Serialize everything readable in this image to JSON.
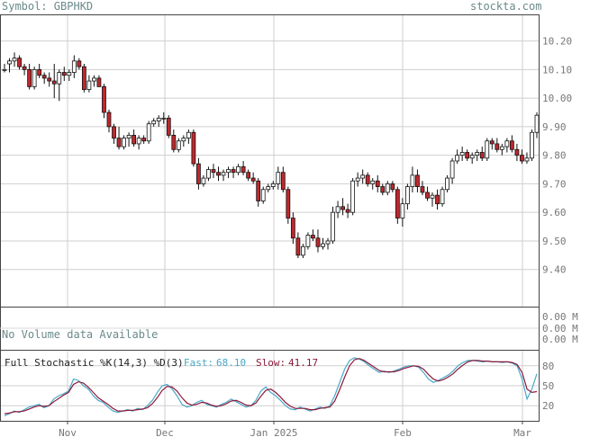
{
  "header": {
    "symbol_label": "Symbol: GBPHKD",
    "brand": "stockta.com"
  },
  "colors": {
    "up_candle": "#ffffff",
    "down_candle": "#c0282d",
    "grid": "#cfcfcf",
    "fast_line": "#4aa8c8",
    "slow_line": "#8b1a3a",
    "text": "#6a8a8a"
  },
  "chart_data": [
    {
      "type": "candlestick",
      "title": "Symbol: GBPHKD",
      "x_labels": [
        "Nov",
        "Dec",
        "Jan 2025",
        "Feb",
        "Mar"
      ],
      "y_ticks": [
        "10.20",
        "10.10",
        "10.00",
        "9.90",
        "9.80",
        "9.70",
        "9.60",
        "9.50",
        "9.40"
      ],
      "ylim": [
        9.27,
        10.29
      ],
      "grid": true,
      "ohlc": [
        [
          10.1,
          10.12,
          10.09,
          10.1
        ],
        [
          10.12,
          10.14,
          10.09,
          10.13
        ],
        [
          10.13,
          10.16,
          10.11,
          10.14
        ],
        [
          10.14,
          10.15,
          10.1,
          10.11
        ],
        [
          10.11,
          10.12,
          10.08,
          10.1
        ],
        [
          10.1,
          10.12,
          10.03,
          10.04
        ],
        [
          10.04,
          10.11,
          10.03,
          10.1
        ],
        [
          10.1,
          10.12,
          10.07,
          10.08
        ],
        [
          10.08,
          10.09,
          10.05,
          10.07
        ],
        [
          10.07,
          10.09,
          10.04,
          10.06
        ],
        [
          10.06,
          10.12,
          10.0,
          10.05
        ],
        [
          10.05,
          10.1,
          9.99,
          10.09
        ],
        [
          10.09,
          10.11,
          10.06,
          10.08
        ],
        [
          10.08,
          10.1,
          10.06,
          10.09
        ],
        [
          10.09,
          10.15,
          10.07,
          10.13
        ],
        [
          10.13,
          10.14,
          10.1,
          10.11
        ],
        [
          10.11,
          10.12,
          10.02,
          10.03
        ],
        [
          10.03,
          10.08,
          10.02,
          10.06
        ],
        [
          10.06,
          10.08,
          10.04,
          10.07
        ],
        [
          10.07,
          10.08,
          10.04,
          10.04
        ],
        [
          10.04,
          10.05,
          9.93,
          9.95
        ],
        [
          9.95,
          9.96,
          9.88,
          9.9
        ],
        [
          9.9,
          9.91,
          9.84,
          9.86
        ],
        [
          9.86,
          9.9,
          9.82,
          9.83
        ],
        [
          9.83,
          9.87,
          9.82,
          9.86
        ],
        [
          9.86,
          9.88,
          9.83,
          9.87
        ],
        [
          9.87,
          9.89,
          9.83,
          9.84
        ],
        [
          9.84,
          9.87,
          9.82,
          9.86
        ],
        [
          9.86,
          9.87,
          9.84,
          9.85
        ],
        [
          9.85,
          9.92,
          9.84,
          9.91
        ],
        [
          9.91,
          9.93,
          9.9,
          9.92
        ],
        [
          9.92,
          9.94,
          9.9,
          9.93
        ],
        [
          9.93,
          9.95,
          9.91,
          9.93
        ],
        [
          9.93,
          9.94,
          9.86,
          9.87
        ],
        [
          9.87,
          9.89,
          9.81,
          9.82
        ],
        [
          9.82,
          9.86,
          9.81,
          9.85
        ],
        [
          9.85,
          9.87,
          9.83,
          9.86
        ],
        [
          9.86,
          9.89,
          9.84,
          9.88
        ],
        [
          9.88,
          9.89,
          9.76,
          9.77
        ],
        [
          9.77,
          9.79,
          9.68,
          9.7
        ],
        [
          9.7,
          9.73,
          9.69,
          9.72
        ],
        [
          9.72,
          9.76,
          9.71,
          9.75
        ],
        [
          9.75,
          9.77,
          9.72,
          9.74
        ],
        [
          9.74,
          9.76,
          9.71,
          9.73
        ],
        [
          9.73,
          9.75,
          9.71,
          9.74
        ],
        [
          9.74,
          9.76,
          9.72,
          9.75
        ],
        [
          9.75,
          9.76,
          9.72,
          9.74
        ],
        [
          9.74,
          9.77,
          9.73,
          9.76
        ],
        [
          9.76,
          9.78,
          9.73,
          9.74
        ],
        [
          9.74,
          9.75,
          9.71,
          9.72
        ],
        [
          9.72,
          9.74,
          9.7,
          9.71
        ],
        [
          9.71,
          9.72,
          9.62,
          9.64
        ],
        [
          9.64,
          9.69,
          9.63,
          9.68
        ],
        [
          9.68,
          9.7,
          9.67,
          9.69
        ],
        [
          9.69,
          9.71,
          9.68,
          9.7
        ],
        [
          9.7,
          9.76,
          9.68,
          9.74
        ],
        [
          9.74,
          9.76,
          9.67,
          9.68
        ],
        [
          9.68,
          9.69,
          9.56,
          9.58
        ],
        [
          9.58,
          9.6,
          9.49,
          9.51
        ],
        [
          9.51,
          9.53,
          9.44,
          9.45
        ],
        [
          9.45,
          9.49,
          9.44,
          9.48
        ],
        [
          9.48,
          9.53,
          9.47,
          9.52
        ],
        [
          9.52,
          9.54,
          9.5,
          9.51
        ],
        [
          9.51,
          9.54,
          9.46,
          9.48
        ],
        [
          9.48,
          9.51,
          9.47,
          9.49
        ],
        [
          9.49,
          9.51,
          9.47,
          9.5
        ],
        [
          9.5,
          9.62,
          9.49,
          9.6
        ],
        [
          9.6,
          9.64,
          9.58,
          9.62
        ],
        [
          9.62,
          9.65,
          9.59,
          9.61
        ],
        [
          9.61,
          9.63,
          9.58,
          9.6
        ],
        [
          9.6,
          9.72,
          9.59,
          9.71
        ],
        [
          9.71,
          9.74,
          9.69,
          9.72
        ],
        [
          9.72,
          9.75,
          9.7,
          9.73
        ],
        [
          9.73,
          9.74,
          9.69,
          9.7
        ],
        [
          9.7,
          9.72,
          9.68,
          9.71
        ],
        [
          9.71,
          9.73,
          9.67,
          9.69
        ],
        [
          9.69,
          9.7,
          9.66,
          9.67
        ],
        [
          9.67,
          9.71,
          9.66,
          9.7
        ],
        [
          9.7,
          9.71,
          9.67,
          9.68
        ],
        [
          9.68,
          9.69,
          9.56,
          9.58
        ],
        [
          9.58,
          9.65,
          9.55,
          9.63
        ],
        [
          9.63,
          9.7,
          9.61,
          9.69
        ],
        [
          9.69,
          9.76,
          9.67,
          9.73
        ],
        [
          9.73,
          9.75,
          9.67,
          9.69
        ],
        [
          9.69,
          9.71,
          9.66,
          9.67
        ],
        [
          9.67,
          9.69,
          9.64,
          9.65
        ],
        [
          9.65,
          9.67,
          9.62,
          9.66
        ],
        [
          9.66,
          9.68,
          9.61,
          9.63
        ],
        [
          9.63,
          9.69,
          9.62,
          9.68
        ],
        [
          9.68,
          9.73,
          9.67,
          9.72
        ],
        [
          9.72,
          9.79,
          9.7,
          9.78
        ],
        [
          9.78,
          9.82,
          9.77,
          9.8
        ],
        [
          9.8,
          9.83,
          9.78,
          9.81
        ],
        [
          9.81,
          9.82,
          9.78,
          9.79
        ],
        [
          9.79,
          9.81,
          9.77,
          9.8
        ],
        [
          9.8,
          9.82,
          9.78,
          9.81
        ],
        [
          9.81,
          9.83,
          9.78,
          9.79
        ],
        [
          9.79,
          9.86,
          9.78,
          9.85
        ],
        [
          9.85,
          9.86,
          9.82,
          9.84
        ],
        [
          9.84,
          9.86,
          9.81,
          9.82
        ],
        [
          9.82,
          9.84,
          9.8,
          9.83
        ],
        [
          9.83,
          9.86,
          9.81,
          9.85
        ],
        [
          9.85,
          9.87,
          9.81,
          9.82
        ],
        [
          9.82,
          9.84,
          9.78,
          9.8
        ],
        [
          9.8,
          9.82,
          9.77,
          9.78
        ],
        [
          9.78,
          9.81,
          9.77,
          9.79
        ],
        [
          9.79,
          9.89,
          9.78,
          9.88
        ],
        [
          9.88,
          9.95,
          9.86,
          9.94
        ]
      ]
    },
    {
      "type": "bar",
      "title": "No Volume data Available",
      "y_ticks": [
        "0.00 M",
        "0.00 M",
        "0.00 M"
      ],
      "values": []
    },
    {
      "type": "line",
      "title": "Full Stochastic %K(14,3) %D(3)",
      "legend": [
        {
          "label": "Fast:",
          "value": "68.10"
        },
        {
          "label": "Slow:",
          "value": "41.17"
        }
      ],
      "y_ticks": [
        "80",
        "50",
        "20"
      ],
      "ylim": [
        0,
        100
      ],
      "series": [
        {
          "name": "Fast",
          "values": [
            5,
            8,
            12,
            10,
            14,
            18,
            20,
            22,
            17,
            20,
            30,
            35,
            38,
            42,
            60,
            58,
            50,
            45,
            35,
            28,
            25,
            18,
            12,
            10,
            12,
            14,
            12,
            16,
            14,
            20,
            28,
            40,
            50,
            52,
            45,
            35,
            22,
            18,
            20,
            25,
            28,
            22,
            20,
            18,
            22,
            25,
            30,
            26,
            22,
            18,
            20,
            28,
            42,
            48,
            40,
            35,
            28,
            20,
            15,
            14,
            18,
            15,
            12,
            15,
            18,
            16,
            20,
            35,
            55,
            75,
            88,
            92,
            90,
            86,
            80,
            75,
            70,
            72,
            70,
            72,
            75,
            78,
            80,
            80,
            78,
            70,
            60,
            55,
            58,
            62,
            66,
            72,
            80,
            85,
            88,
            88,
            87,
            86,
            87,
            86,
            86,
            85,
            86,
            84,
            80,
            60,
            30,
            45,
            68
          ]
        },
        {
          "name": "Slow",
          "values": [
            8,
            9,
            11,
            11,
            12,
            15,
            18,
            20,
            19,
            20,
            26,
            31,
            36,
            40,
            52,
            56,
            54,
            48,
            40,
            32,
            27,
            22,
            16,
            12,
            12,
            13,
            13,
            14,
            15,
            17,
            23,
            32,
            43,
            49,
            48,
            42,
            32,
            24,
            21,
            22,
            25,
            24,
            21,
            19,
            20,
            23,
            27,
            28,
            25,
            21,
            20,
            24,
            34,
            43,
            45,
            40,
            33,
            25,
            19,
            16,
            16,
            16,
            14,
            14,
            16,
            17,
            18,
            27,
            44,
            63,
            80,
            89,
            91,
            88,
            83,
            78,
            73,
            71,
            71,
            71,
            73,
            76,
            78,
            80,
            79,
            75,
            67,
            60,
            57,
            59,
            63,
            68,
            75,
            81,
            86,
            88,
            88,
            87,
            87,
            86,
            86,
            86,
            86,
            85,
            82,
            70,
            45,
            40,
            41.17
          ]
        }
      ]
    }
  ]
}
